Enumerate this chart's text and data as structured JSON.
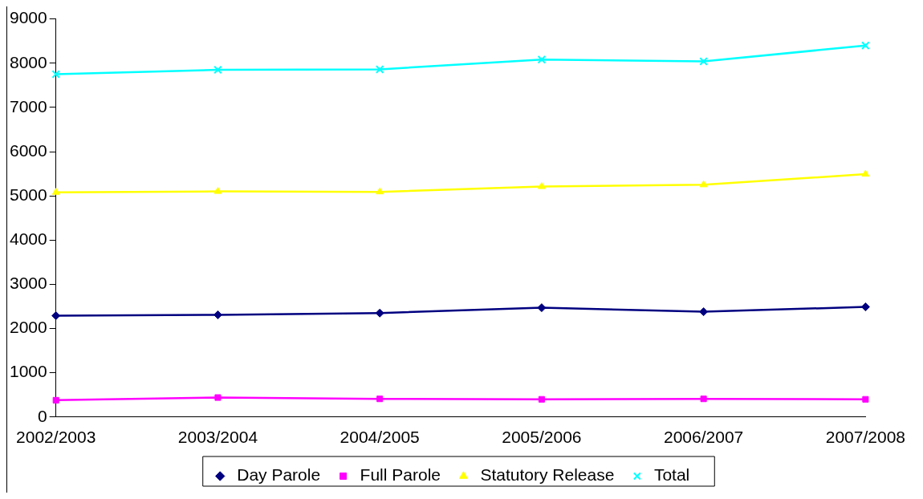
{
  "chart_data": {
    "type": "line",
    "categories": [
      "2002/2003",
      "2003/2004",
      "2004/2005",
      "2005/2006",
      "2006/2007",
      "2007/2008"
    ],
    "series": [
      {
        "name": "Day Parole",
        "color": "#000080",
        "marker": "diamond",
        "values": [
          2290,
          2310,
          2350,
          2470,
          2380,
          2490
        ]
      },
      {
        "name": "Full Parole",
        "color": "#ff00ff",
        "marker": "square",
        "values": [
          380,
          440,
          410,
          400,
          410,
          400
        ]
      },
      {
        "name": "Statutory Release",
        "color": "#ffff00",
        "marker": "triangle",
        "values": [
          5080,
          5100,
          5090,
          5210,
          5250,
          5490
        ]
      },
      {
        "name": "Total",
        "color": "#00ffff",
        "marker": "cross",
        "values": [
          7750,
          7850,
          7860,
          8080,
          8040,
          8400
        ]
      }
    ],
    "ylim": [
      0,
      9000
    ],
    "yticks": [
      0,
      1000,
      2000,
      3000,
      4000,
      5000,
      6000,
      7000,
      8000,
      9000
    ],
    "grid": false,
    "legend": "bottom",
    "line_style": "solid"
  }
}
